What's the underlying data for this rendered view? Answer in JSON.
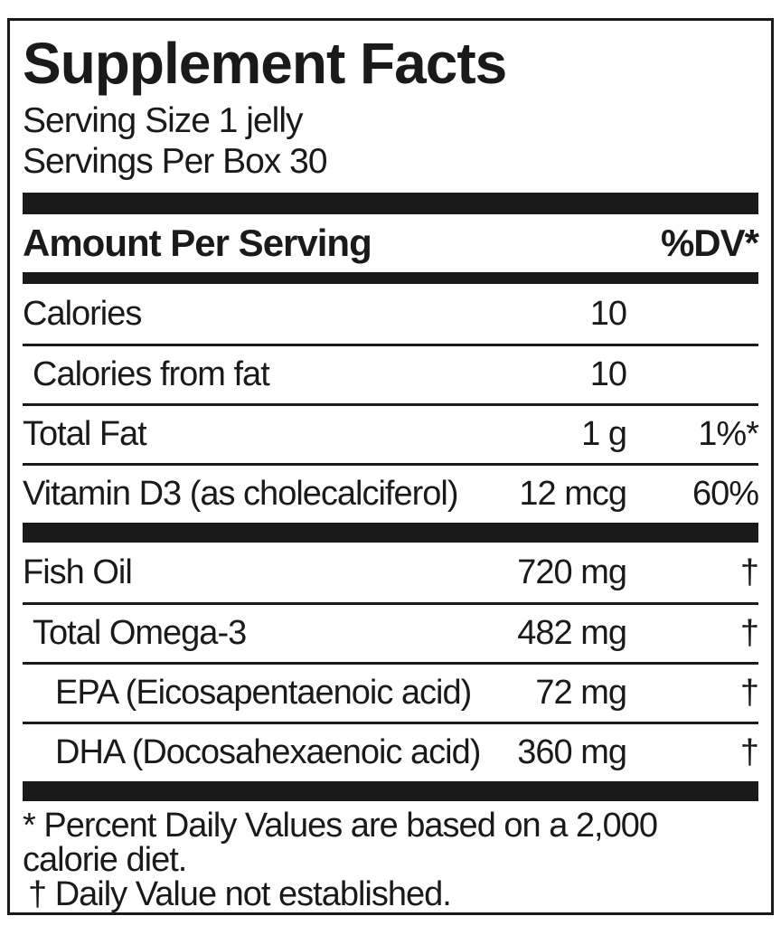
{
  "label": {
    "title": "Supplement Facts",
    "serving_size": "Serving Size 1 jelly",
    "servings_per_box": "Servings Per Box 30",
    "header": {
      "amount_per_serving": "Amount Per Serving",
      "dv": "%DV*"
    },
    "rows_group_1": [
      {
        "name": "Calories",
        "amount": "10",
        "dv": ""
      },
      {
        "name": "Calories from fat",
        "amount": "10",
        "dv": ""
      },
      {
        "name": "Total Fat",
        "amount": "1 g",
        "dv": "1%*"
      },
      {
        "name": "Vitamin D3 (as cholecalciferol)",
        "amount": "12 mcg",
        "dv": "60%"
      }
    ],
    "rows_group_2": [
      {
        "name": "Fish Oil",
        "amount": "720 mg",
        "dv": "†"
      },
      {
        "name": "Total Omega-3",
        "amount": "482 mg",
        "dv": "†"
      },
      {
        "name": "EPA (Eicosapentaenoic acid)",
        "amount": "72 mg",
        "dv": "†"
      },
      {
        "name": "DHA (Docosahexaenoic acid)",
        "amount": "360 mg",
        "dv": "†"
      }
    ],
    "footnote_lines": [
      "* Percent Daily Values are based on a 2,000",
      "calorie diet.",
      "† Daily Value not established."
    ],
    "colors": {
      "ink": "#1a1a1a",
      "background": "#ffffff"
    }
  }
}
